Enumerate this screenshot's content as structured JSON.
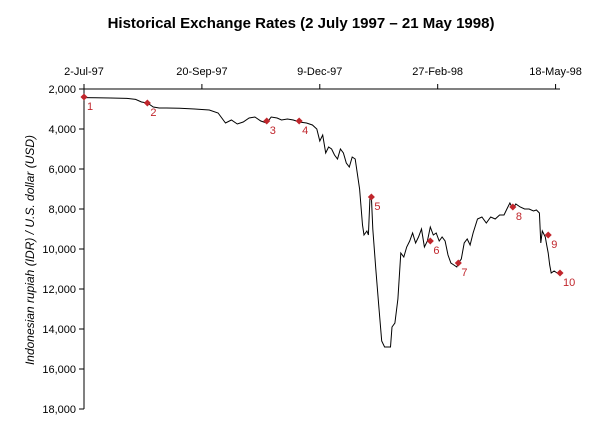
{
  "chart_data": {
    "type": "line",
    "title": "Historical Exchange Rates (2 July 1997 – 21 May 1998)",
    "xlabel": "",
    "ylabel": "Indonesian rupiah (IDR) / U.S. dollar (USD)",
    "x_ticks": [
      {
        "date": "1997-07-02",
        "label": "2-Jul-97"
      },
      {
        "date": "1997-09-20",
        "label": "20-Sep-97"
      },
      {
        "date": "1997-12-09",
        "label": "9-Dec-97"
      },
      {
        "date": "1998-02-27",
        "label": "27-Feb-98"
      },
      {
        "date": "1998-05-18",
        "label": "18-May-98"
      }
    ],
    "xlim": [
      "1997-07-02",
      "1998-05-21"
    ],
    "y_ticks": [
      {
        "value": 2000,
        "label": "2,000"
      },
      {
        "value": 4000,
        "label": "4,000"
      },
      {
        "value": 6000,
        "label": "6,000"
      },
      {
        "value": 8000,
        "label": "8,000"
      },
      {
        "value": 10000,
        "label": "10,000"
      },
      {
        "value": 12000,
        "label": "12,000"
      },
      {
        "value": 14000,
        "label": "14,000"
      },
      {
        "value": 16000,
        "label": "16,000"
      },
      {
        "value": 18000,
        "label": "18,000"
      }
    ],
    "ylim": [
      2000,
      18000
    ],
    "y_inverted": true,
    "x_axis_position": "top",
    "grid": false,
    "line_color": "#000000",
    "event_color": "#c0262c",
    "series": [
      {
        "values": [
          {
            "x": "1997-07-02",
            "y": 2430
          },
          {
            "x": "1997-07-10",
            "y": 2440
          },
          {
            "x": "1997-07-20",
            "y": 2450
          },
          {
            "x": "1997-07-31",
            "y": 2470
          },
          {
            "x": "1997-08-06",
            "y": 2520
          },
          {
            "x": "1997-08-10",
            "y": 2650
          },
          {
            "x": "1997-08-14",
            "y": 2700
          },
          {
            "x": "1997-08-18",
            "y": 2900
          },
          {
            "x": "1997-08-22",
            "y": 2950
          },
          {
            "x": "1997-08-27",
            "y": 2950
          },
          {
            "x": "1997-09-05",
            "y": 2960
          },
          {
            "x": "1997-09-15",
            "y": 3000
          },
          {
            "x": "1997-09-25",
            "y": 3050
          },
          {
            "x": "1997-10-01",
            "y": 3200
          },
          {
            "x": "1997-10-06",
            "y": 3700
          },
          {
            "x": "1997-10-10",
            "y": 3550
          },
          {
            "x": "1997-10-14",
            "y": 3750
          },
          {
            "x": "1997-10-18",
            "y": 3650
          },
          {
            "x": "1997-10-22",
            "y": 3450
          },
          {
            "x": "1997-10-26",
            "y": 3400
          },
          {
            "x": "1997-10-30",
            "y": 3600
          },
          {
            "x": "1997-11-03",
            "y": 3700
          },
          {
            "x": "1997-11-06",
            "y": 3400
          },
          {
            "x": "1997-11-10",
            "y": 3450
          },
          {
            "x": "1997-11-13",
            "y": 3550
          },
          {
            "x": "1997-11-17",
            "y": 3500
          },
          {
            "x": "1997-11-21",
            "y": 3550
          },
          {
            "x": "1997-11-25",
            "y": 3650
          },
          {
            "x": "1997-11-30",
            "y": 3700
          },
          {
            "x": "1997-12-04",
            "y": 3800
          },
          {
            "x": "1997-12-07",
            "y": 4000
          },
          {
            "x": "1997-12-09",
            "y": 4600
          },
          {
            "x": "1997-12-11",
            "y": 4300
          },
          {
            "x": "1997-12-13",
            "y": 5200
          },
          {
            "x": "1997-12-15",
            "y": 4900
          },
          {
            "x": "1997-12-17",
            "y": 5000
          },
          {
            "x": "1997-12-19",
            "y": 5300
          },
          {
            "x": "1997-12-21",
            "y": 5500
          },
          {
            "x": "1997-12-23",
            "y": 5000
          },
          {
            "x": "1997-12-25",
            "y": 5200
          },
          {
            "x": "1997-12-27",
            "y": 5700
          },
          {
            "x": "1997-12-29",
            "y": 5900
          },
          {
            "x": "1997-12-31",
            "y": 5400
          },
          {
            "x": "1998-01-02",
            "y": 5500
          },
          {
            "x": "1998-01-05",
            "y": 7000
          },
          {
            "x": "1998-01-07",
            "y": 8800
          },
          {
            "x": "1998-01-08",
            "y": 9300
          },
          {
            "x": "1998-01-10",
            "y": 9100
          },
          {
            "x": "1998-01-11",
            "y": 9300
          },
          {
            "x": "1998-01-12",
            "y": 7500
          },
          {
            "x": "1998-01-13",
            "y": 7400
          },
          {
            "x": "1998-01-14",
            "y": 9000
          },
          {
            "x": "1998-01-16",
            "y": 11000
          },
          {
            "x": "1998-01-18",
            "y": 12800
          },
          {
            "x": "1998-01-20",
            "y": 14600
          },
          {
            "x": "1998-01-22",
            "y": 14900
          },
          {
            "x": "1998-01-26",
            "y": 14900
          },
          {
            "x": "1998-01-27",
            "y": 13900
          },
          {
            "x": "1998-01-29",
            "y": 13700
          },
          {
            "x": "1998-01-31",
            "y": 12500
          },
          {
            "x": "1998-02-02",
            "y": 10200
          },
          {
            "x": "1998-02-04",
            "y": 10400
          },
          {
            "x": "1998-02-06",
            "y": 9900
          },
          {
            "x": "1998-02-08",
            "y": 9600
          },
          {
            "x": "1998-02-10",
            "y": 9200
          },
          {
            "x": "1998-02-12",
            "y": 9700
          },
          {
            "x": "1998-02-14",
            "y": 9400
          },
          {
            "x": "1998-02-16",
            "y": 9000
          },
          {
            "x": "1998-02-18",
            "y": 9900
          },
          {
            "x": "1998-02-20",
            "y": 9600
          },
          {
            "x": "1998-02-22",
            "y": 8900
          },
          {
            "x": "1998-02-24",
            "y": 9300
          },
          {
            "x": "1998-02-26",
            "y": 9200
          },
          {
            "x": "1998-02-28",
            "y": 9600
          },
          {
            "x": "1998-03-02",
            "y": 9400
          },
          {
            "x": "1998-03-04",
            "y": 9600
          },
          {
            "x": "1998-03-06",
            "y": 10300
          },
          {
            "x": "1998-03-08",
            "y": 10700
          },
          {
            "x": "1998-03-10",
            "y": 10800
          },
          {
            "x": "1998-03-12",
            "y": 10900
          },
          {
            "x": "1998-03-13",
            "y": 10700
          },
          {
            "x": "1998-03-15",
            "y": 10500
          },
          {
            "x": "1998-03-17",
            "y": 9700
          },
          {
            "x": "1998-03-19",
            "y": 9500
          },
          {
            "x": "1998-03-21",
            "y": 9800
          },
          {
            "x": "1998-03-23",
            "y": 9200
          },
          {
            "x": "1998-03-26",
            "y": 8500
          },
          {
            "x": "1998-03-29",
            "y": 8400
          },
          {
            "x": "1998-04-01",
            "y": 8700
          },
          {
            "x": "1998-04-04",
            "y": 8400
          },
          {
            "x": "1998-04-07",
            "y": 8500
          },
          {
            "x": "1998-04-10",
            "y": 8300
          },
          {
            "x": "1998-04-13",
            "y": 8300
          },
          {
            "x": "1998-04-15",
            "y": 8000
          },
          {
            "x": "1998-04-17",
            "y": 7700
          },
          {
            "x": "1998-04-19",
            "y": 8000
          },
          {
            "x": "1998-04-21",
            "y": 7750
          },
          {
            "x": "1998-04-24",
            "y": 7900
          },
          {
            "x": "1998-04-27",
            "y": 8000
          },
          {
            "x": "1998-04-30",
            "y": 8000
          },
          {
            "x": "1998-05-03",
            "y": 8100
          },
          {
            "x": "1998-05-05",
            "y": 8050
          },
          {
            "x": "1998-05-07",
            "y": 8200
          },
          {
            "x": "1998-05-08",
            "y": 9700
          },
          {
            "x": "1998-05-09",
            "y": 9100
          },
          {
            "x": "1998-05-11",
            "y": 9400
          },
          {
            "x": "1998-05-12",
            "y": 9800
          },
          {
            "x": "1998-05-13",
            "y": 10200
          },
          {
            "x": "1998-05-14",
            "y": 10800
          },
          {
            "x": "1998-05-15",
            "y": 11200
          },
          {
            "x": "1998-05-17",
            "y": 11100
          },
          {
            "x": "1998-05-19",
            "y": 11200
          },
          {
            "x": "1998-05-21",
            "y": 11300
          }
        ]
      }
    ],
    "events": [
      {
        "label": "1",
        "x": "1997-07-02",
        "y": 2400
      },
      {
        "label": "2",
        "x": "1997-08-14",
        "y": 2700
      },
      {
        "label": "3",
        "x": "1997-11-03",
        "y": 3600
      },
      {
        "label": "4",
        "x": "1997-11-25",
        "y": 3600
      },
      {
        "label": "5",
        "x": "1998-01-13",
        "y": 7400
      },
      {
        "label": "6",
        "x": "1998-02-22",
        "y": 9600
      },
      {
        "label": "7",
        "x": "1998-03-13",
        "y": 10700
      },
      {
        "label": "8",
        "x": "1998-04-19",
        "y": 7900
      },
      {
        "label": "9",
        "x": "1998-05-13",
        "y": 9300
      },
      {
        "label": "10",
        "x": "1998-05-21",
        "y": 11200
      }
    ]
  }
}
